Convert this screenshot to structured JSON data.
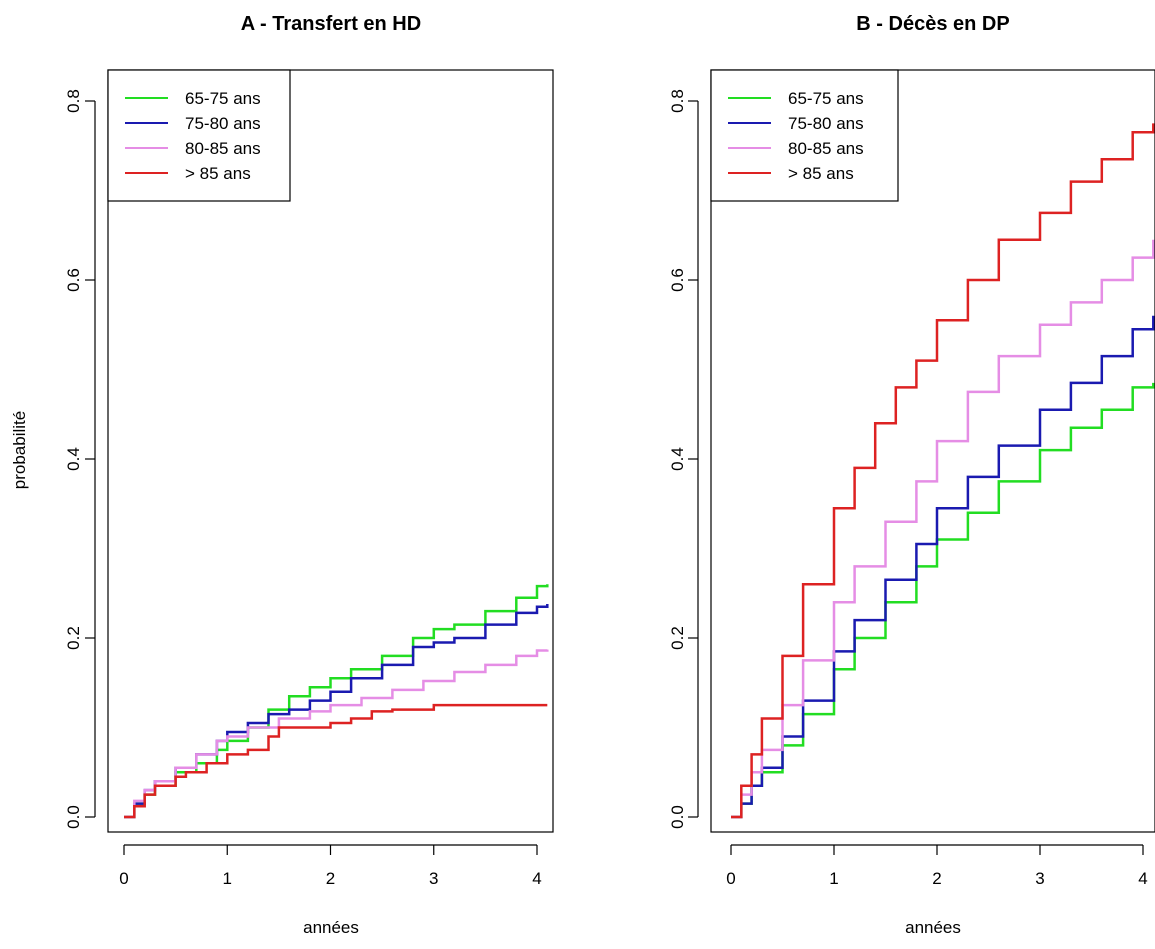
{
  "chart_data": [
    {
      "type": "line",
      "title": "A - Transfert en HD",
      "xlabel": "années",
      "ylabel": "probabilité",
      "xlim": [
        0,
        4.1
      ],
      "ylim": [
        0,
        0.8
      ],
      "xticks": [
        "0",
        "1",
        "2",
        "3",
        "4"
      ],
      "yticks": [
        "0.0",
        "0.2",
        "0.4",
        "0.6",
        "0.8"
      ],
      "legend_position": "top-left",
      "series": [
        {
          "name": "65-75 ans",
          "color": "#22dd22",
          "x": [
            0,
            0.1,
            0.2,
            0.3,
            0.5,
            0.7,
            0.9,
            1.0,
            1.2,
            1.4,
            1.6,
            1.8,
            2.0,
            2.2,
            2.5,
            2.8,
            3.0,
            3.2,
            3.5,
            3.8,
            4.0,
            4.1
          ],
          "y": [
            0,
            0.015,
            0.025,
            0.035,
            0.05,
            0.06,
            0.075,
            0.085,
            0.1,
            0.12,
            0.135,
            0.145,
            0.155,
            0.165,
            0.18,
            0.2,
            0.21,
            0.215,
            0.23,
            0.245,
            0.258,
            0.26
          ]
        },
        {
          "name": "75-80 ans",
          "color": "#1a1ab0",
          "x": [
            0,
            0.1,
            0.2,
            0.3,
            0.5,
            0.7,
            0.9,
            1.0,
            1.2,
            1.4,
            1.6,
            1.8,
            2.0,
            2.2,
            2.5,
            2.8,
            3.0,
            3.2,
            3.5,
            3.8,
            4.0,
            4.1
          ],
          "y": [
            0,
            0.015,
            0.03,
            0.04,
            0.055,
            0.07,
            0.085,
            0.095,
            0.105,
            0.115,
            0.12,
            0.13,
            0.14,
            0.155,
            0.17,
            0.19,
            0.195,
            0.2,
            0.215,
            0.228,
            0.235,
            0.238
          ]
        },
        {
          "name": "80-85 ans",
          "color": "#e58de5",
          "x": [
            0,
            0.1,
            0.2,
            0.3,
            0.5,
            0.7,
            0.9,
            1.0,
            1.2,
            1.5,
            1.8,
            2.0,
            2.3,
            2.6,
            2.9,
            3.2,
            3.5,
            3.8,
            4.0,
            4.1
          ],
          "y": [
            0,
            0.018,
            0.03,
            0.04,
            0.055,
            0.07,
            0.085,
            0.09,
            0.1,
            0.11,
            0.118,
            0.125,
            0.133,
            0.142,
            0.152,
            0.162,
            0.17,
            0.18,
            0.186,
            0.187
          ]
        },
        {
          "name": "> 85 ans",
          "color": "#dd2222",
          "x": [
            0,
            0.1,
            0.2,
            0.3,
            0.5,
            0.6,
            0.8,
            1.0,
            1.2,
            1.4,
            1.5,
            1.8,
            2.0,
            2.2,
            2.4,
            2.6,
            2.8,
            3.0,
            4.1
          ],
          "y": [
            0,
            0.012,
            0.025,
            0.035,
            0.045,
            0.05,
            0.06,
            0.07,
            0.075,
            0.09,
            0.1,
            0.1,
            0.105,
            0.11,
            0.118,
            0.12,
            0.12,
            0.125,
            0.125
          ]
        }
      ]
    },
    {
      "type": "line",
      "title": "B - Décès en DP",
      "xlabel": "années",
      "ylabel": "",
      "xlim": [
        0,
        4.1
      ],
      "ylim": [
        0,
        0.8
      ],
      "xticks": [
        "0",
        "1",
        "2",
        "3",
        "4"
      ],
      "yticks": [
        "0.0",
        "0.2",
        "0.4",
        "0.6",
        "0.8"
      ],
      "legend_position": "top-left",
      "series": [
        {
          "name": "65-75 ans",
          "color": "#22dd22",
          "x": [
            0,
            0.1,
            0.2,
            0.3,
            0.5,
            0.7,
            1.0,
            1.2,
            1.5,
            1.8,
            2.0,
            2.3,
            2.6,
            3.0,
            3.3,
            3.6,
            3.9,
            4.1
          ],
          "y": [
            0,
            0.015,
            0.035,
            0.05,
            0.08,
            0.115,
            0.165,
            0.2,
            0.24,
            0.28,
            0.31,
            0.34,
            0.375,
            0.41,
            0.435,
            0.455,
            0.48,
            0.485
          ]
        },
        {
          "name": "75-80 ans",
          "color": "#1a1ab0",
          "x": [
            0,
            0.1,
            0.2,
            0.3,
            0.5,
            0.7,
            1.0,
            1.2,
            1.5,
            1.8,
            2.0,
            2.3,
            2.6,
            3.0,
            3.3,
            3.6,
            3.9,
            4.1
          ],
          "y": [
            0,
            0.015,
            0.035,
            0.055,
            0.09,
            0.13,
            0.185,
            0.22,
            0.265,
            0.305,
            0.345,
            0.38,
            0.415,
            0.455,
            0.485,
            0.515,
            0.545,
            0.56
          ]
        },
        {
          "name": "80-85 ans",
          "color": "#e58de5",
          "x": [
            0,
            0.1,
            0.2,
            0.3,
            0.5,
            0.7,
            1.0,
            1.2,
            1.5,
            1.8,
            2.0,
            2.3,
            2.6,
            3.0,
            3.3,
            3.6,
            3.9,
            4.1
          ],
          "y": [
            0,
            0.025,
            0.05,
            0.075,
            0.125,
            0.175,
            0.24,
            0.28,
            0.33,
            0.375,
            0.42,
            0.475,
            0.515,
            0.55,
            0.575,
            0.6,
            0.625,
            0.645
          ]
        },
        {
          "name": "> 85 ans",
          "color": "#dd2222",
          "x": [
            0,
            0.1,
            0.2,
            0.3,
            0.5,
            0.7,
            1.0,
            1.2,
            1.4,
            1.6,
            1.8,
            2.0,
            2.3,
            2.6,
            3.0,
            3.3,
            3.6,
            3.9,
            4.1
          ],
          "y": [
            0,
            0.035,
            0.07,
            0.11,
            0.18,
            0.26,
            0.345,
            0.39,
            0.44,
            0.48,
            0.51,
            0.555,
            0.6,
            0.645,
            0.675,
            0.71,
            0.735,
            0.765,
            0.775
          ]
        }
      ]
    }
  ]
}
